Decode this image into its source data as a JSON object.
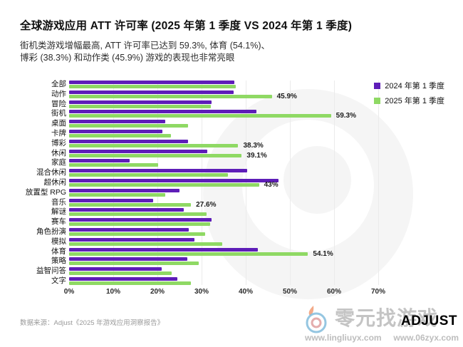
{
  "header": {
    "title": "全球游戏应用 ATT 许可率 (2025 年第 1 季度 VS 2024 年第 1 季度)",
    "subtitle_line1": "街机类游戏增幅最高, ATT 许可率已达到 59.3%, 体育 (54.1%)、",
    "subtitle_line2": "博彩 (38.3%) 和动作类 (45.9%) 游戏的表现也非常亮眼"
  },
  "legend": {
    "items": [
      {
        "label": "2024 年第 1 季度",
        "color": "#5E1DB8"
      },
      {
        "label": "2025 年第 1 季度",
        "color": "#8FD964"
      }
    ]
  },
  "chart_data": {
    "type": "bar",
    "orientation": "horizontal",
    "title": "全球游戏应用 ATT 许可率 (2025 年第 1 季度 VS 2024 年第 1 季度)",
    "xlim": [
      0,
      70
    ],
    "x_ticks": [
      "0%",
      "10%",
      "20%",
      "30%",
      "40%",
      "50%",
      "60%",
      "70%"
    ],
    "grid": true,
    "legend_position": "top-right",
    "categories": [
      "全部",
      "动作",
      "冒险",
      "街机",
      "桌面",
      "卡牌",
      "博彩",
      "休闲",
      "家庭",
      "混合休闲",
      "超休闲",
      "放置型 RPG",
      "音乐",
      "解谜",
      "赛车",
      "角色扮演",
      "模拟",
      "体育",
      "策略",
      "益智问答",
      "文字"
    ],
    "series": [
      {
        "name": "2024 年第 1 季度",
        "color": "#5E1DB8",
        "values": [
          37.4,
          37.3,
          32.2,
          42.4,
          21.8,
          21.1,
          27.0,
          31.3,
          13.7,
          40.3,
          47.5,
          25.0,
          19.1,
          25.9,
          32.2,
          27.1,
          28.4,
          42.8,
          26.8,
          21.0,
          24.5
        ]
      },
      {
        "name": "2025 年第 1 季度",
        "color": "#8FD964",
        "values": [
          37.7,
          45.9,
          32.1,
          59.3,
          27.0,
          23.1,
          38.3,
          39.1,
          20.2,
          35.9,
          43.0,
          21.7,
          27.6,
          31.1,
          32.0,
          30.8,
          34.6,
          54.1,
          29.3,
          23.2,
          27.5
        ]
      }
    ],
    "bar_labels": [
      "",
      "45.9%",
      "",
      "59.3%",
      "",
      "",
      "38.3%",
      "39.1%",
      "",
      "",
      "43%",
      "",
      "27.6%",
      "",
      "",
      "",
      "",
      "54.1%",
      "",
      "",
      ""
    ]
  },
  "footer": {
    "source": "数据来源：Adjust《2025 年游戏应用洞察报告》"
  },
  "watermark": {
    "brand_text": "零元找游戏",
    "adjust_logo": "ADJUST",
    "url_left": "www.lingliuyx.com",
    "url_right": "www.06zyx.com"
  }
}
